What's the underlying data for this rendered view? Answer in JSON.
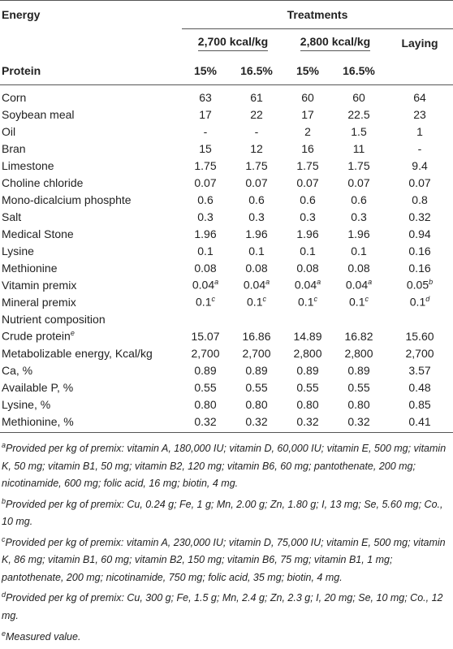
{
  "header": {
    "energy": "Energy",
    "treatments": "Treatments",
    "groups": [
      "2,700 kcal/kg",
      "2,800 kcal/kg",
      "Laying"
    ],
    "protein_label": "Protein",
    "protein": [
      "15%",
      "16.5%",
      "15%",
      "16.5%"
    ]
  },
  "rows": [
    {
      "label": "Corn",
      "cells": [
        "63",
        "61",
        "60",
        "60",
        "64"
      ]
    },
    {
      "label": "Soybean meal",
      "cells": [
        "17",
        "22",
        "17",
        "22.5",
        "23"
      ]
    },
    {
      "label": "Oil",
      "cells": [
        "-",
        "-",
        "2",
        "1.5",
        "1"
      ]
    },
    {
      "label": "Bran",
      "cells": [
        "15",
        "12",
        "16",
        "11",
        "-"
      ]
    },
    {
      "label": "Limestone",
      "cells": [
        "1.75",
        "1.75",
        "1.75",
        "1.75",
        "9.4"
      ]
    },
    {
      "label": "Choline chloride",
      "cells": [
        "0.07",
        "0.07",
        "0.07",
        "0.07",
        "0.07"
      ]
    },
    {
      "label": "Mono-dicalcium phosphte",
      "cells": [
        "0.6",
        "0.6",
        "0.6",
        "0.6",
        "0.8"
      ]
    },
    {
      "label": "Salt",
      "cells": [
        "0.3",
        "0.3",
        "0.3",
        "0.3",
        "0.32"
      ]
    },
    {
      "label": "Medical Stone",
      "cells": [
        "1.96",
        "1.96",
        "1.96",
        "1.96",
        "0.94"
      ]
    },
    {
      "label": "Lysine",
      "cells": [
        "0.1",
        "0.1",
        "0.1",
        "0.1",
        "0.16"
      ]
    },
    {
      "label": "Methionine",
      "cells": [
        "0.08",
        "0.08",
        "0.08",
        "0.08",
        "0.16"
      ]
    },
    {
      "label": "Vitamin premix",
      "cells": [
        {
          "text": "0.04",
          "sup": "a"
        },
        {
          "text": "0.04",
          "sup": "a"
        },
        {
          "text": "0.04",
          "sup": "a"
        },
        {
          "text": "0.04",
          "sup": "a"
        },
        {
          "text": "0.05",
          "sup": "b"
        }
      ]
    },
    {
      "label": "Mineral premix",
      "cells": [
        {
          "text": "0.1",
          "sup": "c"
        },
        {
          "text": "0.1",
          "sup": "c"
        },
        {
          "text": "0.1",
          "sup": "c"
        },
        {
          "text": "0.1",
          "sup": "c"
        },
        {
          "text": "0.1",
          "sup": "d"
        }
      ]
    },
    {
      "label": "Nutrient composition"
    },
    {
      "label": {
        "text": "Crude protein",
        "sup": "e"
      },
      "cells": [
        "15.07",
        "16.86",
        "14.89",
        "16.82",
        "15.60"
      ]
    },
    {
      "label": "Metabolizable energy, Kcal/kg",
      "cells": [
        "2,700",
        "2,700",
        "2,800",
        "2,800",
        "2,700"
      ]
    },
    {
      "label": "Ca, %",
      "cells": [
        "0.89",
        "0.89",
        "0.89",
        "0.89",
        "3.57"
      ]
    },
    {
      "label": "Available P, %",
      "cells": [
        "0.55",
        "0.55",
        "0.55",
        "0.55",
        "0.48"
      ]
    },
    {
      "label": "Lysine, %",
      "cells": [
        "0.80",
        "0.80",
        "0.80",
        "0.80",
        "0.85"
      ]
    },
    {
      "label": "Methionine, %",
      "cells": [
        "0.32",
        "0.32",
        "0.32",
        "0.32",
        "0.41"
      ]
    }
  ],
  "footnotes": [
    {
      "sup": "a",
      "text": "Provided per kg of premix: vitamin A, 180,000 IU; vitamin D, 60,000 IU; vitamin E, 500 mg; vitamin K, 50 mg; vitamin B1, 50 mg; vitamin B2, 120 mg; vitamin B6, 60 mg; pantothenate, 200 mg; nicotinamide, 600 mg; folic acid, 16 mg; biotin, 4 mg."
    },
    {
      "sup": "b",
      "text": "Provided per kg of premix: Cu, 0.24 g; Fe, 1 g; Mn, 2.00 g; Zn, 1.80 g; I, 13 mg; Se, 5.60 mg; Co., 10 mg."
    },
    {
      "sup": "c",
      "text": "Provided per kg of premix: vitamin A, 230,000 IU; vitamin D, 75,000 IU; vitamin E, 500 mg; vitamin K, 86 mg; vitamin B1, 60 mg; vitamin B2, 150 mg; vitamin B6, 75 mg; vitamin B1, 1 mg; pantothenate, 200 mg; nicotinamide, 750 mg; folic acid, 35 mg; biotin, 4 mg."
    },
    {
      "sup": "d",
      "text": "Provided per kg of premix: Cu, 300 g; Fe, 1.5 g; Mn, 2.4 g; Zn, 2.3 g; I, 20 mg; Se, 10 mg; Co., 12 mg."
    },
    {
      "sup": "e",
      "text": "Measured value."
    }
  ]
}
